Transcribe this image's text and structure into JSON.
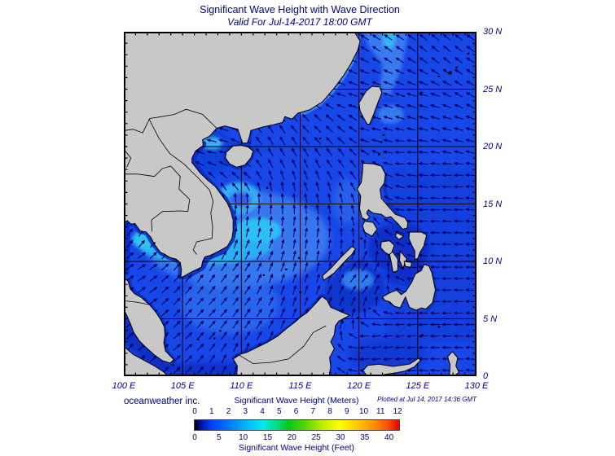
{
  "title": "Significant Wave Height with Wave Direction",
  "subtitle": "Valid For Jul-14-2017 18:00 GMT",
  "credit": "oceanweather inc.",
  "plotted_at": "Plotted at Jul 14, 2017 14:36 GMT",
  "colors": {
    "text_navy": "#00008b",
    "land_gray": "#c8c8c8",
    "coast_black": "#000000",
    "sea_base_blue": "#1747e6",
    "sea_dark_blue": "#0a2cc4",
    "sea_light_blue": "#3c80f2",
    "sea_cyan": "#2cb2f4",
    "arrow_navy": "#000066"
  },
  "map": {
    "lon_min": 100,
    "lon_max": 130,
    "lat_min": 0,
    "lat_max": 30,
    "graticule_deg": 5,
    "tick_deg": 1,
    "lon_tick_labels": [
      {
        "value": 100,
        "label": "100 E"
      },
      {
        "value": 105,
        "label": "105 E"
      },
      {
        "value": 110,
        "label": "110 E"
      },
      {
        "value": 115,
        "label": "115 E"
      },
      {
        "value": 120,
        "label": "120 E"
      },
      {
        "value": 125,
        "label": "125 E"
      },
      {
        "value": 130,
        "label": "130 E"
      }
    ],
    "lat_tick_labels": [
      {
        "value": 30,
        "label": "30 N"
      },
      {
        "value": 25,
        "label": "25 N"
      },
      {
        "value": 20,
        "label": "20 N"
      },
      {
        "value": 15,
        "label": "15 N"
      },
      {
        "value": 10,
        "label": "10 N"
      },
      {
        "value": 5,
        "label": "5 N"
      },
      {
        "value": 0,
        "label": "0"
      }
    ]
  },
  "legend": {
    "meters_label": "Significant Wave Height (Meters)",
    "feet_label": "Significant Wave Height (Feet)",
    "meters_ticks": [
      0,
      1,
      2,
      3,
      4,
      5,
      6,
      7,
      8,
      9,
      10,
      11,
      12
    ],
    "feet_ticks": [
      0,
      5,
      10,
      15,
      20,
      25,
      30,
      35,
      40
    ],
    "colormap_stops": [
      {
        "m": 0,
        "color": "#000000"
      },
      {
        "m": 0.35,
        "color": "#0010a0"
      },
      {
        "m": 1,
        "color": "#0040ff"
      },
      {
        "m": 2,
        "color": "#0078ff"
      },
      {
        "m": 3,
        "color": "#00b4ff"
      },
      {
        "m": 4,
        "color": "#00eaf0"
      },
      {
        "m": 4.7,
        "color": "#00e090"
      },
      {
        "m": 5.5,
        "color": "#00c818"
      },
      {
        "m": 6.5,
        "color": "#58d800"
      },
      {
        "m": 7.5,
        "color": "#c0ec00"
      },
      {
        "m": 8.5,
        "color": "#ffff00"
      },
      {
        "m": 9.5,
        "color": "#ffc800"
      },
      {
        "m": 10.5,
        "color": "#ff9000"
      },
      {
        "m": 11.3,
        "color": "#ff5000"
      },
      {
        "m": 12,
        "color": "#e80000"
      }
    ]
  },
  "chart_data": {
    "type": "heatmap",
    "title": "Significant Wave Height with Wave Direction",
    "valid_time": "Jul-14-2017 18:00 GMT",
    "region_bounds": {
      "lon": [
        100,
        130
      ],
      "lat": [
        0,
        30
      ]
    },
    "units": {
      "primary": "meters",
      "secondary": "feet"
    },
    "scale_range_m": [
      0,
      12
    ],
    "scale_range_ft": [
      0,
      40
    ],
    "hs_field_regions": [
      {
        "region": "central South China Sea SW-monsoon band (109-113E, 10-13N)",
        "hs_m": 2.8
      },
      {
        "region": "mouth of Gulf of Thailand (101-106E, 9-12N)",
        "hs_m": 2.6
      },
      {
        "region": "off central Vietnam (~110E, 15N)",
        "hs_m": 2.4
      },
      {
        "region": "broad central South China Sea",
        "hs_m": 2.0
      },
      {
        "region": "East China Sea coastal strip near Zhejiang/Fujian",
        "hs_m": 2.0
      },
      {
        "region": "Gulf of Tonkin",
        "hs_m": 1.8
      },
      {
        "region": "open Philippine Sea / Pacific",
        "hs_m": 1.3
      },
      {
        "region": "Sulu Sea core",
        "hs_m": 1.6
      },
      {
        "region": "sheltered coastal waters (Tonkin west, Vietnam coast, Gulf coasts, Borneo NW, interior Philippine seas)",
        "hs_m": 0.6
      },
      {
        "region": "Malacca Strait / Java Sea fringes",
        "hs_m": 0.4
      }
    ],
    "wave_direction_field_note": "deg CCW from east, direction arrows point toward",
    "wave_direction_field": [
      [
        122.5,
        28.5,
        145
      ],
      [
        127,
        28.5,
        140
      ],
      [
        129.5,
        25,
        150
      ],
      [
        121.8,
        25.5,
        160
      ],
      [
        125,
        23.5,
        165
      ],
      [
        128.5,
        21,
        165
      ],
      [
        121,
        21.5,
        170
      ],
      [
        124,
        19.5,
        178
      ],
      [
        127.5,
        17,
        180
      ],
      [
        125.5,
        14,
        182
      ],
      [
        128.5,
        11,
        180
      ],
      [
        126,
        8,
        182
      ],
      [
        128.5,
        5,
        180
      ],
      [
        124.5,
        4,
        185
      ],
      [
        121.5,
        2.5,
        188
      ],
      [
        119,
        22,
        140
      ],
      [
        116.5,
        21.5,
        135
      ],
      [
        113.5,
        19.5,
        120
      ],
      [
        115.5,
        17.5,
        110
      ],
      [
        113.5,
        15.5,
        95
      ],
      [
        114.5,
        12.5,
        80
      ],
      [
        112,
        13.5,
        80
      ],
      [
        111.5,
        11,
        62
      ],
      [
        109.5,
        8.5,
        52
      ],
      [
        107.5,
        5.5,
        46
      ],
      [
        104.5,
        2.5,
        42
      ],
      [
        110.5,
        5,
        55
      ],
      [
        113.5,
        8.5,
        70
      ],
      [
        116,
        11.5,
        80
      ],
      [
        117.5,
        15,
        100
      ],
      [
        118.5,
        18.5,
        125
      ],
      [
        110.3,
        14.5,
        85
      ],
      [
        108,
        19.8,
        168
      ],
      [
        109.7,
        17.5,
        140
      ],
      [
        101.5,
        9.5,
        32
      ],
      [
        102.8,
        11.8,
        50
      ],
      [
        100.7,
        12.7,
        55
      ],
      [
        100.8,
        6.8,
        35
      ],
      [
        120.2,
        8.5,
        52
      ],
      [
        118,
        6,
        65
      ],
      [
        111.5,
        1.2,
        75
      ],
      [
        119.5,
        24,
        165
      ]
    ]
  }
}
